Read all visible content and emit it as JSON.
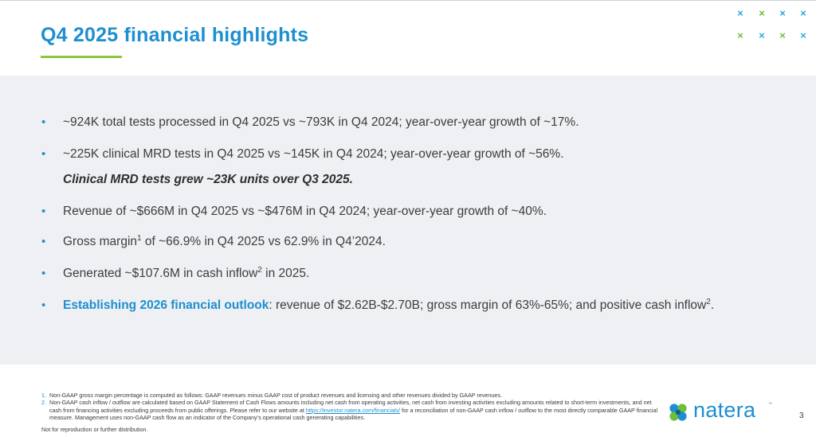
{
  "header": {
    "title": "Q4 2025 financial highlights"
  },
  "decoration": {
    "x_glyph": "×",
    "colors": {
      "blue": "#29a8e0",
      "green": "#6cbf3a",
      "accent": "#1e8fcf"
    }
  },
  "bullets": {
    "b1": "~924K total tests processed in Q4 2025 vs ~793K in Q4 2024; year-over-year growth of ~17%.",
    "b2": "~225K clinical MRD tests in Q4 2025 vs ~145K in Q4 2024; year-over-year growth of ~56%.",
    "b2_sub": "Clinical MRD tests grew ~23K units over Q3 2025.",
    "b3": "Revenue of ~$666M in Q4 2025 vs ~$476M in Q4 2024; year-over-year growth of ~40%.",
    "b4_pre": "Gross margin",
    "b4_sup": "1",
    "b4_post": " of ~66.9% in Q4 2025 vs 62.9% in Q4’2024.",
    "b5_pre": "Generated ~$107.6M in cash inflow",
    "b5_sup": "2",
    "b5_post": " in 2025.",
    "b6_highlight": "Establishing 2026 financial outlook",
    "b6_pre": ": revenue of $2.62B-$2.70B; gross margin of 63%-65%; and positive cash inflow",
    "b6_sup": "2",
    "b6_post": ".",
    "bullet_glyph": "•"
  },
  "footnotes": {
    "n1": "1.",
    "f1": "Non-GAAP gross margin percentage is computed as follows:  GAAP revenues minus GAAP cost of product revenues and licensing and other revenues divided by GAAP revenues.",
    "n2": "2.",
    "f2_pre": "Non-GAAP cash inflow / outflow are calculated based on GAAP Statement of Cash Flows amounts including net cash from operating activities, net cash from investing activities excluding amounts related to short-term investments, and net cash from financing activities excluding proceeds from public offerings. Please refer to our website at ",
    "f2_link": "https://investor.natera.com/financials/",
    "f2_post": " for a reconciliation of non-GAAP cash inflow / outflow to the most directly comparable GAAP financial measure. Management uses non-GAAP cash flow as an indicator of the Company’s operational cash generating capabilities.",
    "disclaimer": "Not for reproduction or further distribution."
  },
  "logo": {
    "word": "natera",
    "tm": "™"
  },
  "page": {
    "number": "3"
  }
}
